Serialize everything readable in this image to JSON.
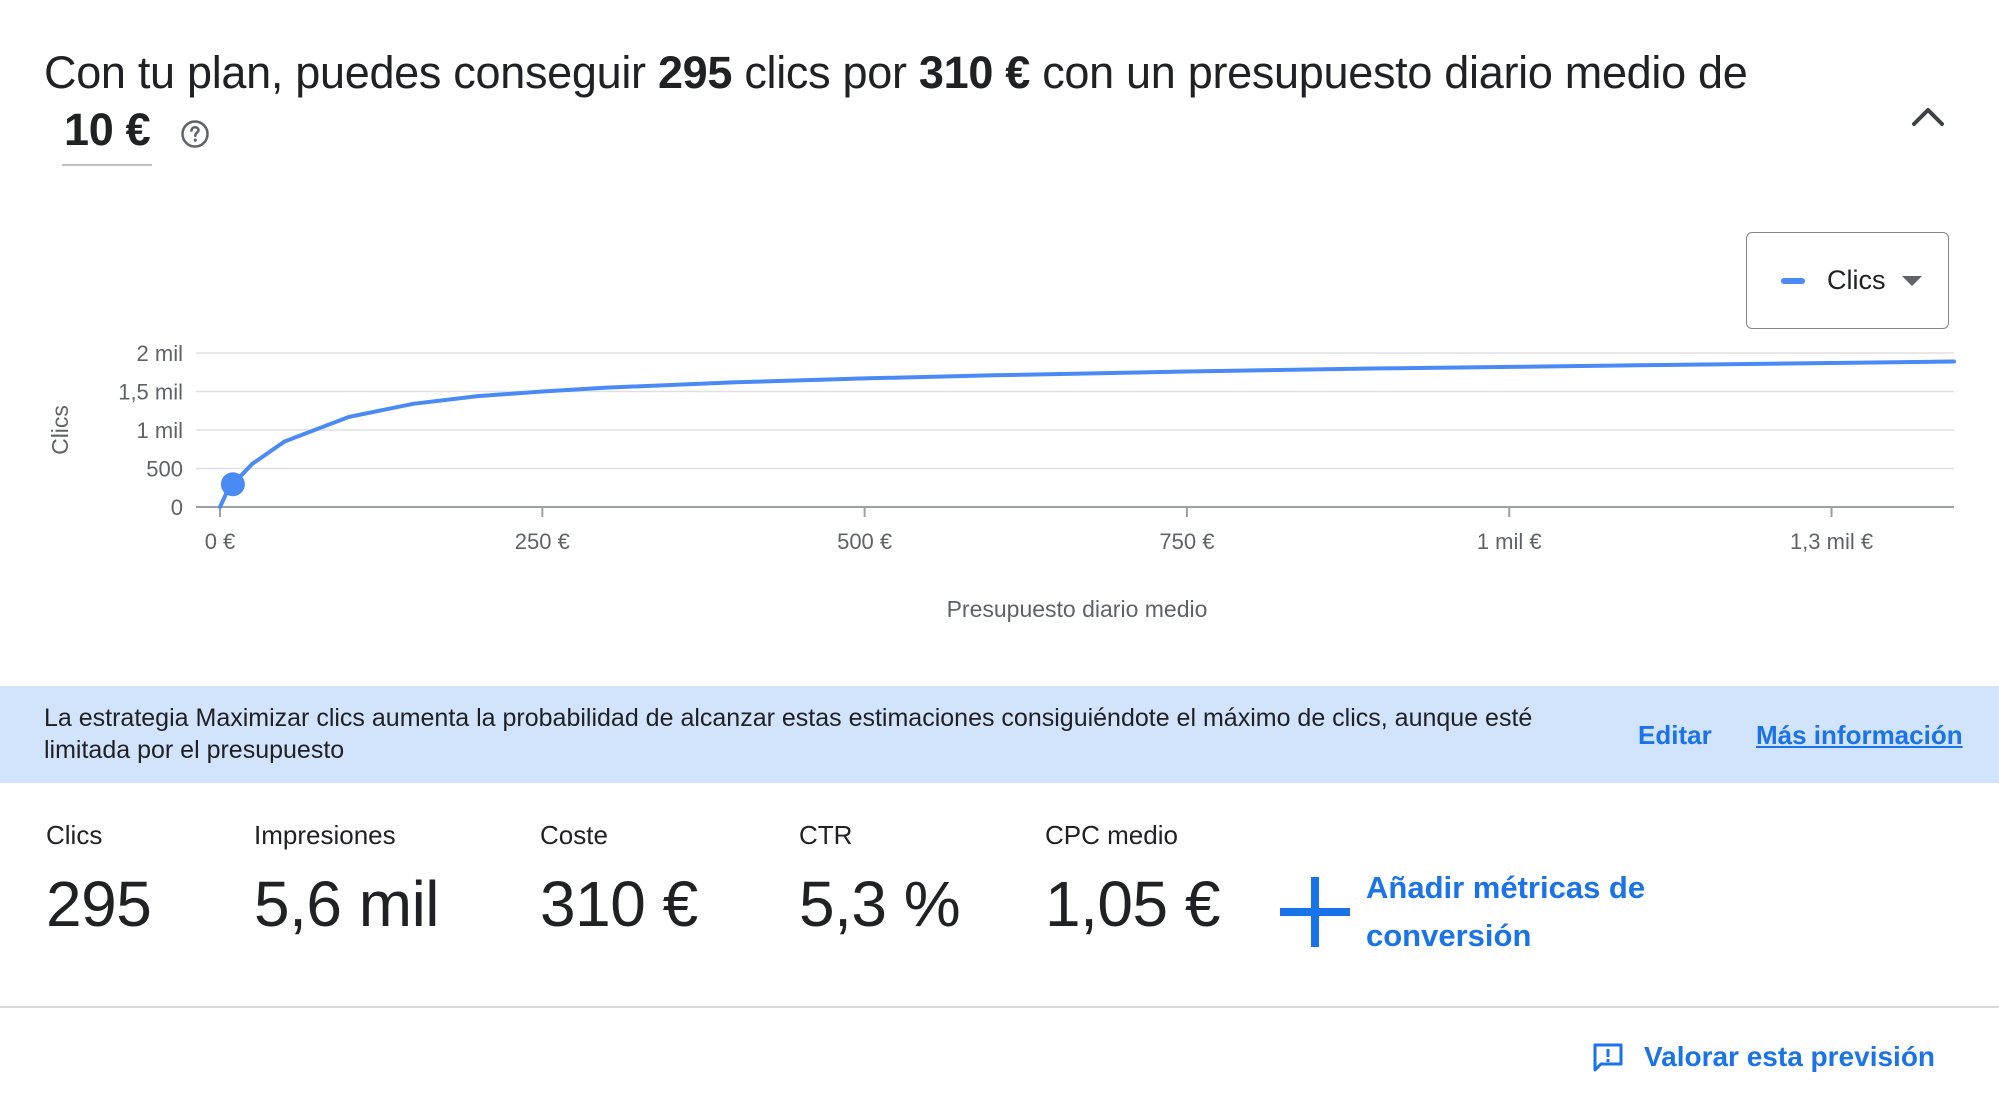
{
  "headline": {
    "part1": "Con tu plan, puedes conseguir ",
    "clicks": "295 clics",
    "part2": " clics por ",
    "clicks_num": "295",
    "cost": "310 €",
    "part3": " con un presupuesto diario medio de",
    "budget": "10 €"
  },
  "metric_select": {
    "label": "Clics",
    "color": "#4a8af4"
  },
  "chart_data": {
    "type": "line",
    "xlabel": "Presupuesto diario medio",
    "ylabel": "Clics",
    "x_ticks": [
      {
        "value": 0,
        "label": "0 €"
      },
      {
        "value": 250,
        "label": "250 €"
      },
      {
        "value": 500,
        "label": "500 €"
      },
      {
        "value": 750,
        "label": "750 €"
      },
      {
        "value": 1000,
        "label": "1 mil €"
      },
      {
        "value": 1250,
        "label": "1,3 mil €"
      }
    ],
    "y_ticks": [
      {
        "value": 0,
        "label": "0"
      },
      {
        "value": 500,
        "label": "500"
      },
      {
        "value": 1000,
        "label": "1 mil"
      },
      {
        "value": 1500,
        "label": "1,5 mil"
      },
      {
        "value": 2000,
        "label": "2 mil"
      }
    ],
    "xlim": [
      0,
      1345
    ],
    "ylim": [
      0,
      2000
    ],
    "series": [
      {
        "color": "#4a8af4",
        "x": [
          0,
          5,
          10,
          25,
          50,
          100,
          150,
          200,
          250,
          300,
          400,
          500,
          600,
          750,
          900,
          1000,
          1100,
          1250,
          1345
        ],
        "y": [
          0,
          180,
          295,
          560,
          850,
          1170,
          1340,
          1440,
          1500,
          1550,
          1620,
          1670,
          1710,
          1760,
          1800,
          1820,
          1840,
          1870,
          1890
        ]
      }
    ],
    "highlight": {
      "x": 10,
      "y": 295
    },
    "grid": true
  },
  "banner": {
    "text": "La estrategia Maximizar clics aumenta la probabilidad de alcanzar estas estimaciones consiguiéndote el máximo de clics, aunque esté limitada por el presupuesto",
    "edit": "Editar",
    "more": "Más información"
  },
  "metrics": [
    {
      "label": "Clics",
      "value": "295"
    },
    {
      "label": "Impresiones",
      "value": "5,6 mil"
    },
    {
      "label": "Coste",
      "value": "310 €"
    },
    {
      "label": "CTR",
      "value": "5,3 %"
    },
    {
      "label": "CPC medio",
      "value": "1,05 €"
    }
  ],
  "add_conversion": "Añadir métricas de conversión",
  "rate_forecast": "Valorar esta previsión"
}
